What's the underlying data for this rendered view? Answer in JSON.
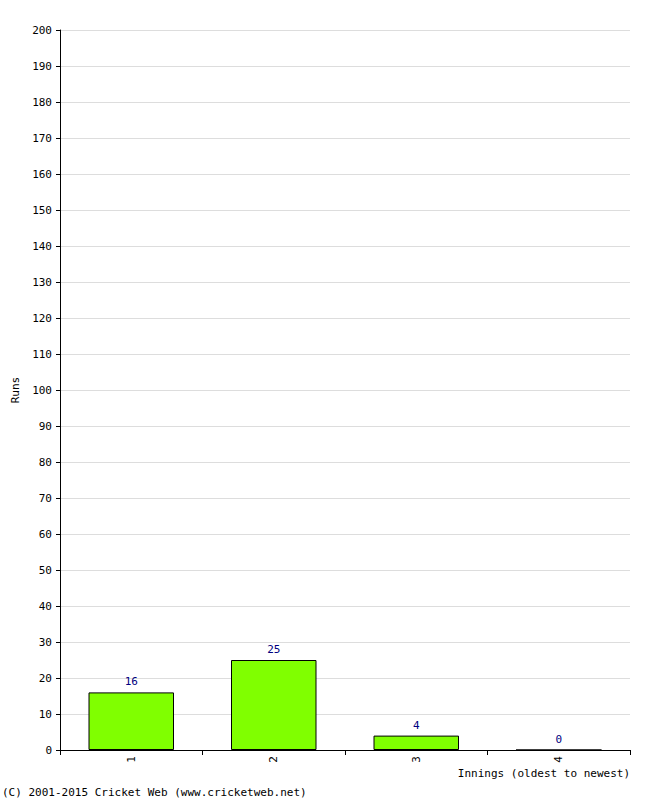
{
  "chart_data": {
    "type": "bar",
    "categories": [
      "1",
      "2",
      "3",
      "4"
    ],
    "values": [
      16,
      25,
      4,
      0
    ],
    "color": "#80ff00",
    "x_label": "Innings (oldest to newest)",
    "y_label": "Runs",
    "annotation": "(C) 2001-2015 Cricket Web (www.cricketweb.net)",
    "ylim": [
      0,
      200
    ],
    "yticks": [
      0,
      10,
      20,
      30,
      40,
      50,
      60,
      70,
      80,
      90,
      100,
      110,
      120,
      130,
      140,
      150,
      160,
      170,
      180,
      190,
      200
    ],
    "grid": true,
    "data_labels": true
  }
}
